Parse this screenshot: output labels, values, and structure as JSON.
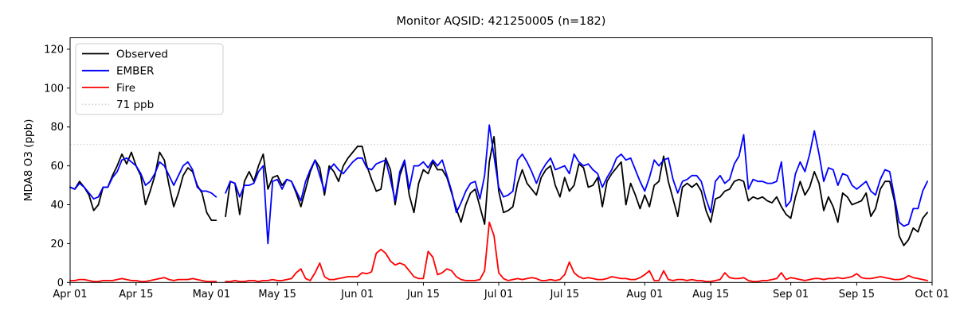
{
  "chart_data": {
    "type": "line",
    "title": "Monitor AQSID: 421250005 (n=182)",
    "xlabel": "",
    "ylabel": "MDA8 O3 (ppb)",
    "n_label": 182,
    "x_unit": "day",
    "x_start": "Apr 01",
    "x_end": "Oct 01",
    "x_total_days": 183,
    "missing_day_index": 32,
    "grid": false,
    "legend_position": "upper left",
    "ylim": [
      0,
      125.9
    ],
    "y_ticks": [
      0,
      20,
      40,
      60,
      80,
      100,
      120
    ],
    "x_ticks": [
      {
        "label": "Apr 01",
        "day": 0
      },
      {
        "label": "Apr 15",
        "day": 14
      },
      {
        "label": "May 01",
        "day": 30
      },
      {
        "label": "May 15",
        "day": 44
      },
      {
        "label": "Jun 01",
        "day": 61
      },
      {
        "label": "Jun 15",
        "day": 75
      },
      {
        "label": "Jul 01",
        "day": 91
      },
      {
        "label": "Jul 15",
        "day": 105
      },
      {
        "label": "Aug 01",
        "day": 122
      },
      {
        "label": "Aug 15",
        "day": 136
      },
      {
        "label": "Sep 01",
        "day": 153
      },
      {
        "label": "Sep 15",
        "day": 167
      },
      {
        "label": "Oct 01",
        "day": 183
      }
    ],
    "reference_line": {
      "label": "71 ppb",
      "value": 71,
      "color": "#d3d3d3",
      "linestyle": "dotted"
    },
    "series": [
      {
        "name": "Observed",
        "color": "#000000",
        "linestyle": "solid",
        "values": [
          49,
          48,
          52,
          49,
          45,
          37,
          40,
          49,
          49,
          55,
          60,
          66,
          61,
          67,
          60,
          55,
          40,
          47,
          55,
          67,
          63,
          50,
          39,
          46,
          55,
          59,
          57,
          50,
          46,
          36,
          32,
          32,
          null,
          34,
          52,
          51,
          35,
          52,
          57,
          52,
          60,
          66,
          48,
          54,
          55,
          50,
          53,
          52,
          46,
          39,
          48,
          57,
          63,
          59,
          45,
          60,
          57,
          52,
          60,
          64,
          67,
          70,
          70,
          60,
          53,
          47,
          48,
          64,
          58,
          40,
          55,
          62,
          45,
          36,
          51,
          58,
          56,
          62,
          58,
          58,
          54,
          46,
          38,
          31,
          40,
          46,
          48,
          39,
          30,
          62,
          75,
          47,
          36,
          37,
          39,
          51,
          58,
          51,
          48,
          45,
          54,
          58,
          60,
          50,
          44,
          54,
          47,
          50,
          61,
          59,
          49,
          50,
          54,
          39,
          52,
          56,
          59,
          62,
          40,
          51,
          45,
          38,
          45,
          39,
          50,
          52,
          65,
          52,
          43,
          34,
          49,
          51,
          49,
          51,
          47,
          37,
          31,
          43,
          44,
          47,
          48,
          52,
          53,
          52,
          42,
          44,
          43,
          44,
          42,
          41,
          44,
          39,
          35,
          33,
          44,
          52,
          45,
          49,
          57,
          51,
          37,
          44,
          39,
          31,
          46,
          44,
          40,
          41,
          42,
          46,
          34,
          38,
          48,
          52,
          52,
          42,
          24,
          19,
          22,
          28,
          26,
          33,
          36
        ]
      },
      {
        "name": "EMBER",
        "color": "#0000ff",
        "linestyle": "solid",
        "values": [
          49,
          48,
          51,
          49,
          46,
          43,
          44,
          49,
          49,
          54,
          57,
          63,
          64,
          62,
          60,
          56,
          50,
          52,
          56,
          62,
          60,
          55,
          50,
          55,
          60,
          62,
          58,
          49,
          47,
          47,
          46,
          44,
          null,
          46,
          52,
          51,
          44,
          50,
          50,
          51,
          57,
          60,
          20,
          52,
          53,
          48,
          53,
          52,
          47,
          42,
          52,
          58,
          63,
          55,
          47,
          58,
          61,
          58,
          56,
          59,
          62,
          64,
          64,
          59,
          58,
          61,
          62,
          63,
          53,
          42,
          57,
          63,
          48,
          60,
          60,
          62,
          59,
          63,
          60,
          63,
          55,
          47,
          36,
          41,
          47,
          51,
          52,
          43,
          55,
          81,
          65,
          49,
          44,
          45,
          47,
          63,
          66,
          62,
          57,
          51,
          57,
          61,
          64,
          58,
          59,
          60,
          56,
          66,
          62,
          60,
          61,
          58,
          56,
          49,
          54,
          58,
          64,
          66,
          63,
          64,
          58,
          52,
          47,
          54,
          63,
          60,
          63,
          64,
          53,
          46,
          52,
          53,
          55,
          55,
          52,
          43,
          36,
          52,
          55,
          51,
          53,
          61,
          65,
          76,
          48,
          53,
          52,
          52,
          51,
          51,
          52,
          62,
          39,
          42,
          56,
          62,
          57,
          66,
          78,
          66,
          52,
          59,
          58,
          50,
          56,
          55,
          50,
          48,
          50,
          52,
          47,
          45,
          53,
          58,
          57,
          44,
          31,
          29,
          30,
          38,
          38,
          47,
          52
        ]
      },
      {
        "name": "Fire",
        "color": "#ff0000",
        "linestyle": "solid",
        "values": [
          1,
          1,
          1.5,
          1.5,
          1,
          0.5,
          0.5,
          1,
          1,
          1,
          1.5,
          2,
          1.5,
          1,
          1,
          0.5,
          0.5,
          1,
          1.5,
          2,
          2.5,
          1.5,
          1,
          1.5,
          1.5,
          1.5,
          2,
          1.5,
          1,
          0.5,
          0.5,
          0.5,
          null,
          0.5,
          0.5,
          1,
          0.5,
          0.5,
          1,
          1,
          0.5,
          1,
          1,
          1.5,
          1,
          1,
          1.5,
          2,
          5,
          7,
          2,
          1,
          5,
          10,
          3,
          1.5,
          1.5,
          2,
          2.5,
          3,
          3,
          3,
          5,
          4.5,
          5.5,
          15,
          17,
          15,
          11,
          9,
          10,
          9,
          6,
          3,
          2,
          2,
          16,
          13,
          4,
          5,
          7,
          6,
          3,
          1.5,
          1,
          1,
          1,
          1.5,
          6,
          31,
          24,
          5,
          2,
          1,
          1.5,
          2,
          1.5,
          2,
          2.5,
          2,
          1,
          1,
          1.5,
          1,
          1.5,
          4,
          10.5,
          5,
          3,
          2,
          2.5,
          2,
          1.5,
          1.5,
          2,
          3,
          2.5,
          2,
          2,
          1.5,
          1.5,
          2.5,
          4,
          6,
          1,
          1,
          6,
          1.5,
          1,
          1.5,
          1.5,
          1,
          1.5,
          1,
          1,
          0.5,
          0.5,
          1,
          1.5,
          5,
          2.5,
          2,
          2,
          2.5,
          1,
          0.5,
          0.5,
          1,
          1,
          1.5,
          2,
          5,
          1.5,
          2.5,
          2,
          1.5,
          1,
          1.5,
          2,
          2,
          1.5,
          2,
          2,
          2.5,
          2,
          2.5,
          3,
          4.5,
          2.5,
          2,
          2,
          2.5,
          3,
          2.5,
          2,
          1.5,
          1.5,
          2,
          3.5,
          2.5,
          2,
          1.5,
          1
        ]
      }
    ],
    "legend_entries": [
      "Observed",
      "EMBER",
      "Fire",
      "71 ppb"
    ]
  }
}
